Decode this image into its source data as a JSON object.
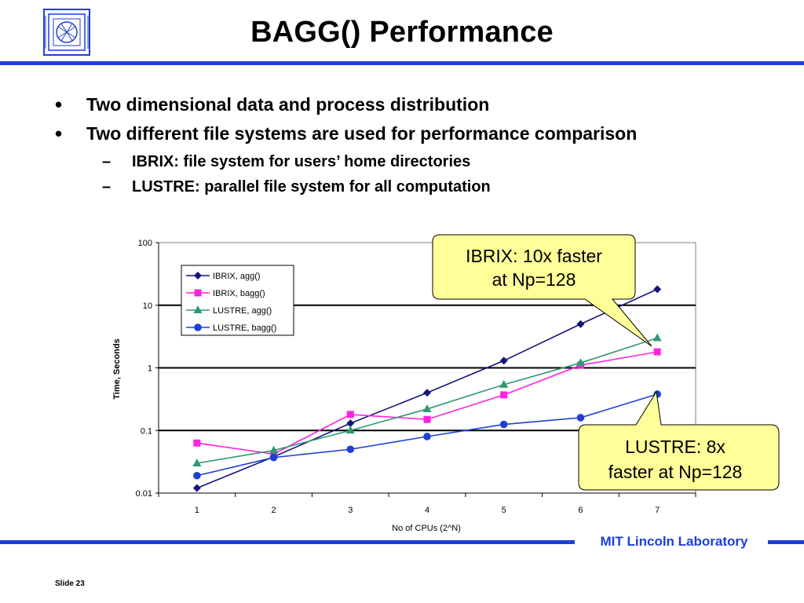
{
  "title": "BAGG() Performance",
  "bullets": [
    {
      "level": 1,
      "text": "Two dimensional data and process distribution"
    },
    {
      "level": 1,
      "text": "Two different file systems are used for performance comparison"
    },
    {
      "level": 2,
      "text": "IBRIX: file system for users’ home directories"
    },
    {
      "level": 2,
      "text": "LUSTRE: parallel file system for all computation"
    }
  ],
  "callouts": {
    "ibrix": [
      "IBRIX: 10x faster",
      "at Np=128"
    ],
    "lustre": [
      "LUSTRE: 8x",
      "faster at Np=128"
    ]
  },
  "footer": {
    "lab": "MIT Lincoln Laboratory",
    "slide": "Slide 23"
  },
  "colors": {
    "rule": "#1f3fd6",
    "callout_bg": "#ffff99"
  },
  "chart_data": {
    "type": "line",
    "xlabel": "No of CPUs (2^N)",
    "ylabel": "Time, Seconds",
    "x": [
      1,
      2,
      3,
      4,
      5,
      6,
      7
    ],
    "x_tick_labels": [
      "1",
      "2",
      "3",
      "4",
      "5",
      "6",
      "7"
    ],
    "y_scale": "log",
    "ylim": [
      0.01,
      100
    ],
    "y_tick_labels": [
      "0.01",
      "0.1",
      "1",
      "10",
      "100"
    ],
    "grid": "horizontal major",
    "legend_position": "top-left",
    "series": [
      {
        "name": "IBRIX, agg()",
        "color": "#14147a",
        "marker": "diamond",
        "values": [
          0.012,
          0.038,
          0.13,
          0.4,
          1.3,
          5.0,
          18.0
        ]
      },
      {
        "name": "IBRIX, bagg()",
        "color": "#ff22dd",
        "marker": "square",
        "values": [
          0.063,
          0.042,
          0.18,
          0.15,
          0.37,
          1.1,
          1.8
        ]
      },
      {
        "name": "LUSTRE, agg()",
        "color": "#2e9a6e",
        "marker": "triangle",
        "values": [
          0.03,
          0.048,
          0.1,
          0.22,
          0.54,
          1.2,
          3.0
        ]
      },
      {
        "name": "LUSTRE, bagg()",
        "color": "#1f3fd6",
        "marker": "circle",
        "values": [
          0.019,
          0.037,
          0.05,
          0.08,
          0.125,
          0.16,
          0.38
        ]
      }
    ]
  }
}
